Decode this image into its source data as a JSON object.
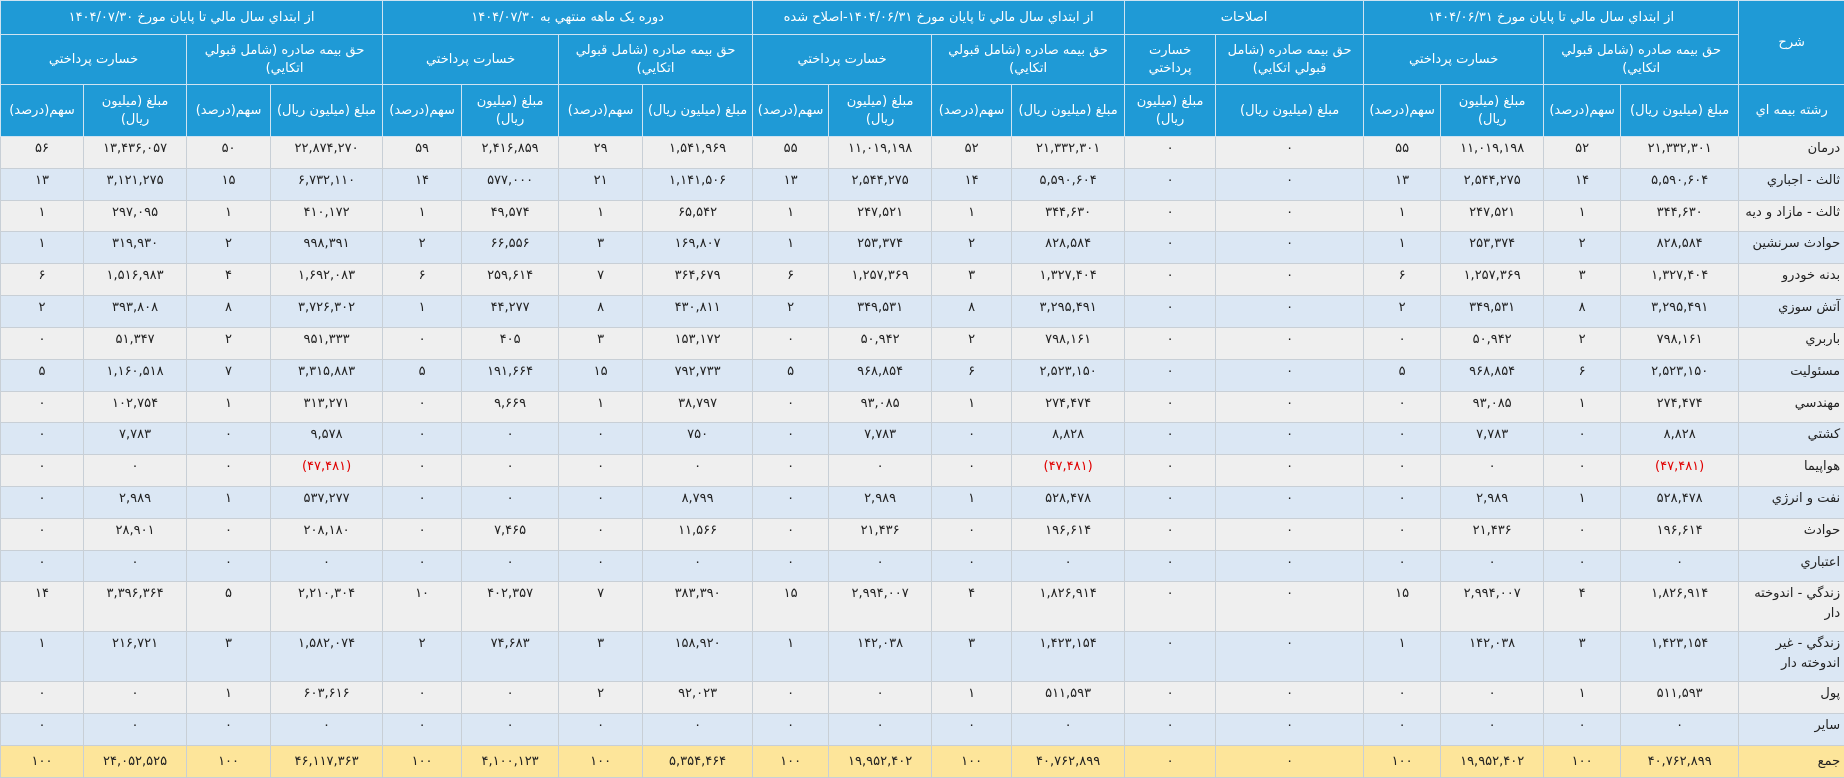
{
  "header": {
    "title_col": "شرح",
    "row_label_col": "رشته بيمه اي",
    "groups": [
      {
        "title": "از ابتداي سال مالي تا پايان مورخ ۱۴۰۴/۰۶/۳۱",
        "subgroups": [
          {
            "title": "حق بيمه صادره (شامل قبولي اتكايي)",
            "columns": [
              "مبلغ (ميليون ريال)",
              "سهم(درصد)"
            ]
          },
          {
            "title": "خسارت پرداختي",
            "columns": [
              "مبلغ (ميليون ريال)",
              "سهم(درصد)"
            ]
          }
        ]
      },
      {
        "title": "اصلاحات",
        "subgroups": [
          {
            "title": "حق بيمه صادره (شامل قبولي اتكايي)",
            "columns": [
              "مبلغ (ميليون ريال)"
            ]
          },
          {
            "title": "خسارت پرداختي",
            "columns": [
              "مبلغ (ميليون ريال)"
            ]
          }
        ]
      },
      {
        "title": "از ابتداي سال مالي تا پايان مورخ ۱۴۰۴/۰۶/۳۱-اصلاح شده",
        "subgroups": [
          {
            "title": "حق بيمه صادره (شامل قبولي اتكايي)",
            "columns": [
              "مبلغ (ميليون ريال)",
              "سهم(درصد)"
            ]
          },
          {
            "title": "خسارت پرداختي",
            "columns": [
              "مبلغ (ميليون ريال)",
              "سهم(درصد)"
            ]
          }
        ]
      },
      {
        "title": "دوره يک ماهه منتهي به ۱۴۰۴/۰۷/۳۰",
        "subgroups": [
          {
            "title": "حق بيمه صادره (شامل قبولي اتكايي)",
            "columns": [
              "مبلغ (ميليون ريال)",
              "سهم(درصد)"
            ]
          },
          {
            "title": "خسارت پرداختي",
            "columns": [
              "مبلغ (ميليون ريال)",
              "سهم(درصد)"
            ]
          }
        ]
      },
      {
        "title": "از ابتداي سال مالي تا پايان مورخ ۱۴۰۴/۰۷/۳۰",
        "subgroups": [
          {
            "title": "حق بيمه صادره (شامل قبولي اتكايي)",
            "columns": [
              "مبلغ (ميليون ريال)",
              "سهم(درصد)"
            ]
          },
          {
            "title": "خسارت پرداختي",
            "columns": [
              "مبلغ (ميليون ريال)",
              "سهم(درصد)"
            ]
          }
        ]
      }
    ]
  },
  "table": {
    "rows": [
      [
        "درمان",
        "۲۱,۳۳۲,۳۰۱",
        "۵۲",
        "۱۱,۰۱۹,۱۹۸",
        "۵۵",
        "۰",
        "۰",
        "۲۱,۳۳۲,۳۰۱",
        "۵۲",
        "۱۱,۰۱۹,۱۹۸",
        "۵۵",
        "۱,۵۴۱,۹۶۹",
        "۲۹",
        "۲,۴۱۶,۸۵۹",
        "۵۹",
        "۲۲,۸۷۴,۲۷۰",
        "۵۰",
        "۱۳,۴۳۶,۰۵۷",
        "۵۶"
      ],
      [
        "ثالث - اجباري",
        "۵,۵۹۰,۶۰۴",
        "۱۴",
        "۲,۵۴۴,۲۷۵",
        "۱۳",
        "۰",
        "۰",
        "۵,۵۹۰,۶۰۴",
        "۱۴",
        "۲,۵۴۴,۲۷۵",
        "۱۳",
        "۱,۱۴۱,۵۰۶",
        "۲۱",
        "۵۷۷,۰۰۰",
        "۱۴",
        "۶,۷۳۲,۱۱۰",
        "۱۵",
        "۳,۱۲۱,۲۷۵",
        "۱۳"
      ],
      [
        "ثالث - مازاد و ديه",
        "۳۴۴,۶۳۰",
        "۱",
        "۲۴۷,۵۲۱",
        "۱",
        "۰",
        "۰",
        "۳۴۴,۶۳۰",
        "۱",
        "۲۴۷,۵۲۱",
        "۱",
        "۶۵,۵۴۲",
        "۱",
        "۴۹,۵۷۴",
        "۱",
        "۴۱۰,۱۷۲",
        "۱",
        "۲۹۷,۰۹۵",
        "۱"
      ],
      [
        "حوادث سرنشين",
        "۸۲۸,۵۸۴",
        "۲",
        "۲۵۳,۳۷۴",
        "۱",
        "۰",
        "۰",
        "۸۲۸,۵۸۴",
        "۲",
        "۲۵۳,۳۷۴",
        "۱",
        "۱۶۹,۸۰۷",
        "۳",
        "۶۶,۵۵۶",
        "۲",
        "۹۹۸,۳۹۱",
        "۲",
        "۳۱۹,۹۳۰",
        "۱"
      ],
      [
        "بدنه خودرو",
        "۱,۳۲۷,۴۰۴",
        "۳",
        "۱,۲۵۷,۳۶۹",
        "۶",
        "۰",
        "۰",
        "۱,۳۲۷,۴۰۴",
        "۳",
        "۱,۲۵۷,۳۶۹",
        "۶",
        "۳۶۴,۶۷۹",
        "۷",
        "۲۵۹,۶۱۴",
        "۶",
        "۱,۶۹۲,۰۸۳",
        "۴",
        "۱,۵۱۶,۹۸۳",
        "۶"
      ],
      [
        "آتش سوزي",
        "۳,۲۹۵,۴۹۱",
        "۸",
        "۳۴۹,۵۳۱",
        "۲",
        "۰",
        "۰",
        "۳,۲۹۵,۴۹۱",
        "۸",
        "۳۴۹,۵۳۱",
        "۲",
        "۴۳۰,۸۱۱",
        "۸",
        "۴۴,۲۷۷",
        "۱",
        "۳,۷۲۶,۳۰۲",
        "۸",
        "۳۹۳,۸۰۸",
        "۲"
      ],
      [
        "باربري",
        "۷۹۸,۱۶۱",
        "۲",
        "۵۰,۹۴۲",
        "۰",
        "۰",
        "۰",
        "۷۹۸,۱۶۱",
        "۲",
        "۵۰,۹۴۲",
        "۰",
        "۱۵۳,۱۷۲",
        "۳",
        "۴۰۵",
        "۰",
        "۹۵۱,۳۳۳",
        "۲",
        "۵۱,۳۴۷",
        "۰"
      ],
      [
        "مسئوليت",
        "۲,۵۲۳,۱۵۰",
        "۶",
        "۹۶۸,۸۵۴",
        "۵",
        "۰",
        "۰",
        "۲,۵۲۳,۱۵۰",
        "۶",
        "۹۶۸,۸۵۴",
        "۵",
        "۷۹۲,۷۳۳",
        "۱۵",
        "۱۹۱,۶۶۴",
        "۵",
        "۳,۳۱۵,۸۸۳",
        "۷",
        "۱,۱۶۰,۵۱۸",
        "۵"
      ],
      [
        "مهندسي",
        "۲۷۴,۴۷۴",
        "۱",
        "۹۳,۰۸۵",
        "۰",
        "۰",
        "۰",
        "۲۷۴,۴۷۴",
        "۱",
        "۹۳,۰۸۵",
        "۰",
        "۳۸,۷۹۷",
        "۱",
        "۹,۶۶۹",
        "۰",
        "۳۱۳,۲۷۱",
        "۱",
        "۱۰۲,۷۵۴",
        "۰"
      ],
      [
        "كشتي",
        "۸,۸۲۸",
        "۰",
        "۷,۷۸۳",
        "۰",
        "۰",
        "۰",
        "۸,۸۲۸",
        "۰",
        "۷,۷۸۳",
        "۰",
        "۷۵۰",
        "۰",
        "۰",
        "۰",
        "۹,۵۷۸",
        "۰",
        "۷,۷۸۳",
        "۰"
      ],
      [
        "هواپيما",
        "(۴۷,۴۸۱)",
        "۰",
        "۰",
        "۰",
        "۰",
        "۰",
        "(۴۷,۴۸۱)",
        "۰",
        "۰",
        "۰",
        "۰",
        "۰",
        "۰",
        "۰",
        "(۴۷,۴۸۱)",
        "۰",
        "۰",
        "۰"
      ],
      [
        "نفت و انرژي",
        "۵۲۸,۴۷۸",
        "۱",
        "۲,۹۸۹",
        "۰",
        "۰",
        "۰",
        "۵۲۸,۴۷۸",
        "۱",
        "۲,۹۸۹",
        "۰",
        "۸,۷۹۹",
        "۰",
        "۰",
        "۰",
        "۵۳۷,۲۷۷",
        "۱",
        "۲,۹۸۹",
        "۰"
      ],
      [
        "حوادث",
        "۱۹۶,۶۱۴",
        "۰",
        "۲۱,۴۳۶",
        "۰",
        "۰",
        "۰",
        "۱۹۶,۶۱۴",
        "۰",
        "۲۱,۴۳۶",
        "۰",
        "۱۱,۵۶۶",
        "۰",
        "۷,۴۶۵",
        "۰",
        "۲۰۸,۱۸۰",
        "۰",
        "۲۸,۹۰۱",
        "۰"
      ],
      [
        "اعتباري",
        "۰",
        "۰",
        "۰",
        "۰",
        "۰",
        "۰",
        "۰",
        "۰",
        "۰",
        "۰",
        "۰",
        "۰",
        "۰",
        "۰",
        "۰",
        "۰",
        "۰",
        "۰"
      ],
      [
        "زندگي - اندوخته دار",
        "۱,۸۲۶,۹۱۴",
        "۴",
        "۲,۹۹۴,۰۰۷",
        "۱۵",
        "۰",
        "۰",
        "۱,۸۲۶,۹۱۴",
        "۴",
        "۲,۹۹۴,۰۰۷",
        "۱۵",
        "۳۸۳,۳۹۰",
        "۷",
        "۴۰۲,۳۵۷",
        "۱۰",
        "۲,۲۱۰,۳۰۴",
        "۵",
        "۳,۳۹۶,۳۶۴",
        "۱۴"
      ],
      [
        "زندگي - غير اندوخته دار",
        "۱,۴۲۳,۱۵۴",
        "۳",
        "۱۴۲,۰۳۸",
        "۱",
        "۰",
        "۰",
        "۱,۴۲۳,۱۵۴",
        "۳",
        "۱۴۲,۰۳۸",
        "۱",
        "۱۵۸,۹۲۰",
        "۳",
        "۷۴,۶۸۳",
        "۲",
        "۱,۵۸۲,۰۷۴",
        "۳",
        "۲۱۶,۷۲۱",
        "۱"
      ],
      [
        "پول",
        "۵۱۱,۵۹۳",
        "۱",
        "۰",
        "۰",
        "۰",
        "۰",
        "۵۱۱,۵۹۳",
        "۱",
        "۰",
        "۰",
        "۹۲,۰۲۳",
        "۲",
        "۰",
        "۰",
        "۶۰۳,۶۱۶",
        "۱",
        "۰",
        "۰"
      ],
      [
        "ساير",
        "۰",
        "۰",
        "۰",
        "۰",
        "۰",
        "۰",
        "۰",
        "۰",
        "۰",
        "۰",
        "۰",
        "۰",
        "۰",
        "۰",
        "۰",
        "۰",
        "۰",
        "۰"
      ],
      [
        "جمع",
        "۴۰,۷۶۲,۸۹۹",
        "۱۰۰",
        "۱۹,۹۵۲,۴۰۲",
        "۱۰۰",
        "۰",
        "۰",
        "۴۰,۷۶۲,۸۹۹",
        "۱۰۰",
        "۱۹,۹۵۲,۴۰۲",
        "۱۰۰",
        "۵,۳۵۴,۴۶۴",
        "۱۰۰",
        "۴,۱۰۰,۱۲۳",
        "۱۰۰",
        "۴۶,۱۱۷,۳۶۳",
        "۱۰۰",
        "۲۴,۰۵۲,۵۲۵",
        "۱۰۰"
      ]
    ]
  }
}
